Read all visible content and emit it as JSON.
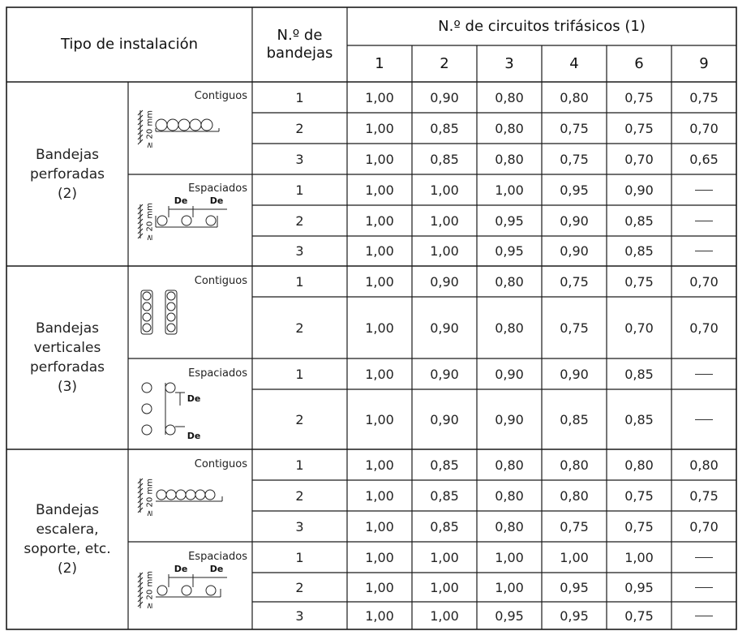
{
  "header": {
    "tipo_instalacion": "Tipo de instalación",
    "num_bandejas_line1": "N.º de",
    "num_bandejas_line2": "bandejas",
    "circuitos": "N.º de circuitos trifásicos (1)",
    "columns": [
      "1",
      "2",
      "3",
      "4",
      "6",
      "9"
    ]
  },
  "groups": [
    {
      "label_lines": [
        "Bandejas",
        "perforadas",
        "(2)"
      ]
    },
    {
      "label_lines": [
        "Bandejas",
        "verticales",
        "perforadas",
        "(3)"
      ]
    },
    {
      "label_lines": [
        "Bandejas",
        "escalera,",
        "soporte, etc.",
        "(2)"
      ]
    }
  ],
  "subgroups": [
    "Contiguos",
    "Espaciados",
    "Contiguos",
    "Espaciados",
    "Contiguos",
    "Espaciados"
  ],
  "icon_labels": {
    "gap": "≥ 20 mm",
    "de": "De"
  },
  "rows": [
    {
      "bandejas": "1",
      "values": [
        "1,00",
        "0,90",
        "0,80",
        "0,80",
        "0,75",
        "0,75"
      ]
    },
    {
      "bandejas": "2",
      "values": [
        "1,00",
        "0,85",
        "0,80",
        "0,75",
        "0,75",
        "0,70"
      ]
    },
    {
      "bandejas": "3",
      "values": [
        "1,00",
        "0,85",
        "0,80",
        "0,75",
        "0,70",
        "0,65"
      ]
    },
    {
      "bandejas": "1",
      "values": [
        "1,00",
        "1,00",
        "1,00",
        "0,95",
        "0,90",
        "—"
      ]
    },
    {
      "bandejas": "2",
      "values": [
        "1,00",
        "1,00",
        "0,95",
        "0,90",
        "0,85",
        "—"
      ]
    },
    {
      "bandejas": "3",
      "values": [
        "1,00",
        "1,00",
        "0,95",
        "0,90",
        "0,85",
        "—"
      ]
    },
    {
      "bandejas": "1",
      "values": [
        "1,00",
        "0,90",
        "0,80",
        "0,75",
        "0,75",
        "0,70"
      ]
    },
    {
      "bandejas": "2",
      "values": [
        "1,00",
        "0,90",
        "0,80",
        "0,75",
        "0,70",
        "0,70"
      ]
    },
    {
      "bandejas": "1",
      "values": [
        "1,00",
        "0,90",
        "0,90",
        "0,90",
        "0,85",
        "—"
      ]
    },
    {
      "bandejas": "2",
      "values": [
        "1,00",
        "0,90",
        "0,90",
        "0,85",
        "0,85",
        "—"
      ]
    },
    {
      "bandejas": "1",
      "values": [
        "1,00",
        "0,85",
        "0,80",
        "0,80",
        "0,80",
        "0,80"
      ]
    },
    {
      "bandejas": "2",
      "values": [
        "1,00",
        "0,85",
        "0,80",
        "0,80",
        "0,75",
        "0,75"
      ]
    },
    {
      "bandejas": "3",
      "values": [
        "1,00",
        "0,85",
        "0,80",
        "0,75",
        "0,75",
        "0,70"
      ]
    },
    {
      "bandejas": "1",
      "values": [
        "1,00",
        "1,00",
        "1,00",
        "1,00",
        "1,00",
        "—"
      ]
    },
    {
      "bandejas": "2",
      "values": [
        "1,00",
        "1,00",
        "1,00",
        "0,95",
        "0,95",
        "—"
      ]
    },
    {
      "bandejas": "3",
      "values": [
        "1,00",
        "1,00",
        "0,95",
        "0,95",
        "0,75",
        "—"
      ]
    }
  ]
}
